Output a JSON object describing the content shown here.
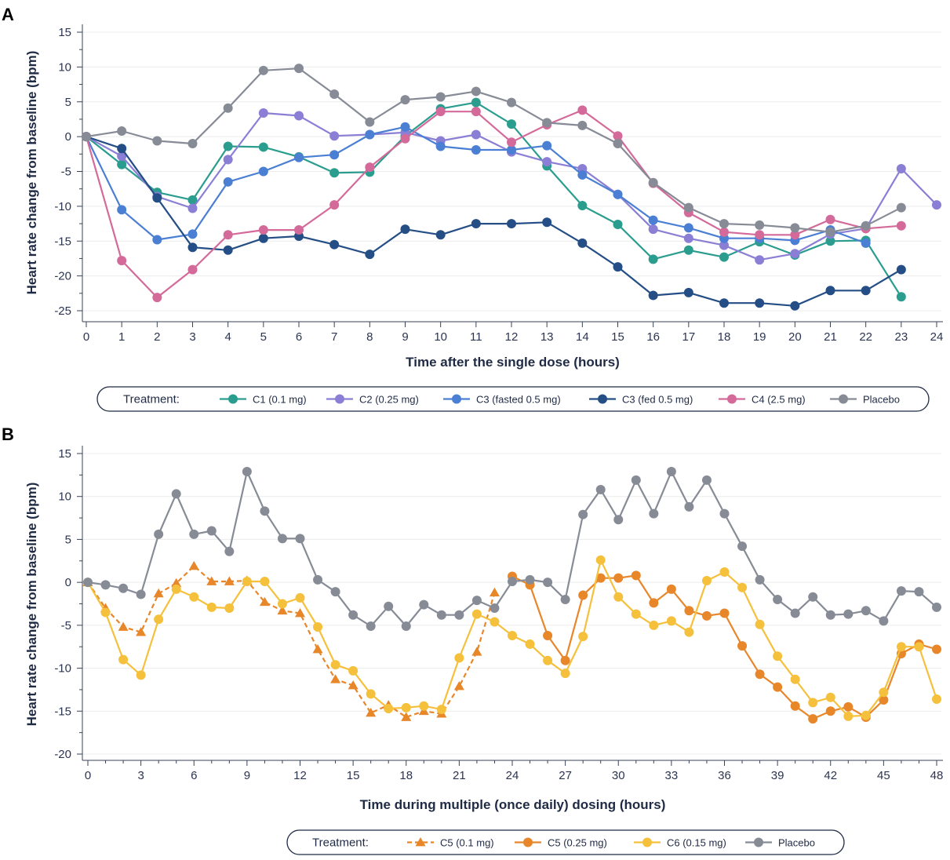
{
  "chart_data": [
    {
      "panel": "A",
      "type": "line",
      "xlabel": "Time after the single dose (hours)",
      "ylabel": "Heart rate change from baseline (bpm)",
      "xlim": [
        0,
        24
      ],
      "ylim": [
        -25,
        15
      ],
      "xticks": [
        0,
        1,
        2,
        3,
        4,
        5,
        6,
        7,
        8,
        9,
        10,
        11,
        12,
        13,
        14,
        15,
        16,
        17,
        18,
        19,
        20,
        21,
        22,
        23,
        24
      ],
      "yticks": [
        15,
        10,
        5,
        0,
        -5,
        -10,
        -15,
        -20,
        -25
      ],
      "legend_title": "Treatment:",
      "x": [
        0,
        1,
        2,
        3,
        4,
        5,
        6,
        7,
        8,
        9,
        10,
        11,
        12,
        13,
        14,
        15,
        16,
        17,
        18,
        19,
        20,
        21,
        22,
        23,
        24
      ],
      "series": [
        {
          "name": "C1 (0.1 mg)",
          "color": "#2a9d8f",
          "marker": "circle",
          "dash": false,
          "values": [
            0,
            -4,
            -8,
            -9.1,
            -1.4,
            -1.5,
            -2.9,
            -5.2,
            -5.1,
            0.1,
            4,
            4.9,
            1.8,
            -4.2,
            -9.9,
            -12.6,
            -17.6,
            -16.3,
            -17.3,
            -15.1,
            -17,
            -15,
            -14.9,
            -23,
            null
          ]
        },
        {
          "name": "C2 (0.25 mg)",
          "color": "#8a7fd4",
          "marker": "circle",
          "dash": false,
          "values": [
            0,
            -2.8,
            -8.6,
            -10.3,
            -3.3,
            3.4,
            3,
            0.1,
            0.3,
            0.6,
            -0.6,
            0.3,
            -2.2,
            -3.6,
            -4.6,
            -8.3,
            -13.3,
            -14.6,
            -15.6,
            -17.7,
            -16.8,
            -14,
            -13.2,
            -4.6,
            -9.8
          ]
        },
        {
          "name": "C3 (fasted 0.5 mg)",
          "color": "#4a7fd4",
          "marker": "circle",
          "dash": false,
          "values": [
            0,
            -10.5,
            -14.8,
            -14,
            -6.5,
            -5,
            -3,
            -2.6,
            0.3,
            1.4,
            -1.4,
            -1.9,
            -1.9,
            -1.3,
            -5.5,
            -8.3,
            -12,
            -13.1,
            -14.6,
            -14.6,
            -14.9,
            -13.4,
            -15.3,
            null,
            null
          ]
        },
        {
          "name": "C3 (fed 0.5 mg)",
          "color": "#244e85",
          "marker": "circle",
          "dash": false,
          "values": [
            0,
            -1.7,
            -8.8,
            -15.9,
            -16.3,
            -14.6,
            -14.3,
            -15.5,
            -16.9,
            -13.3,
            -14.1,
            -12.5,
            -12.5,
            -12.3,
            -15.3,
            -18.7,
            -22.8,
            -22.4,
            -23.9,
            -23.9,
            -24.3,
            -22.1,
            -22.1,
            -19.1,
            null
          ]
        },
        {
          "name": "C4 (2.5 mg)",
          "color": "#d46a9a",
          "marker": "circle",
          "dash": false,
          "values": [
            0,
            -17.8,
            -23.1,
            -19.1,
            -14.1,
            -13.4,
            -13.4,
            -9.8,
            -4.4,
            -0.3,
            3.6,
            3.6,
            -0.8,
            1.7,
            3.8,
            0.1,
            -6.7,
            -10.9,
            -13.7,
            -14.1,
            -14.1,
            -11.9,
            -13.2,
            -12.8,
            null
          ]
        },
        {
          "name": "Placebo",
          "color": "#868b96",
          "marker": "circle",
          "dash": false,
          "values": [
            0,
            0.8,
            -0.6,
            -1,
            4.1,
            9.5,
            9.8,
            6.1,
            2.1,
            5.3,
            5.7,
            6.5,
            4.9,
            2,
            1.6,
            -1,
            -6.6,
            -10.2,
            -12.5,
            -12.7,
            -13.1,
            -13.7,
            -12.8,
            -10.2,
            null
          ]
        }
      ]
    },
    {
      "panel": "B",
      "type": "line",
      "xlabel": "Time during multiple (once daily) dosing (hours)",
      "ylabel": "Heart rate change from baseline (bpm)",
      "xlim": [
        0,
        48
      ],
      "ylim": [
        -20,
        15
      ],
      "xticks": [
        0,
        3,
        6,
        9,
        12,
        15,
        18,
        21,
        24,
        27,
        30,
        33,
        36,
        39,
        42,
        45,
        48
      ],
      "yticks": [
        15,
        10,
        5,
        0,
        -5,
        -10,
        -15,
        -20
      ],
      "legend_title": "Treatment:",
      "series": [
        {
          "name": "C5 (0.1 mg)",
          "color": "#e8862a",
          "marker": "triangle",
          "dash": true,
          "x": [
            0,
            1,
            2,
            3,
            4,
            5,
            6,
            7,
            8,
            9,
            10,
            11,
            12,
            13,
            14,
            15,
            16,
            17,
            18,
            19,
            20,
            21,
            22,
            23
          ],
          "values": [
            0,
            -3,
            -5.2,
            -5.8,
            -1.3,
            -0.1,
            1.9,
            0.1,
            0.1,
            0.2,
            -2.3,
            -3.3,
            -3.6,
            -7.8,
            -11.3,
            -12,
            -15.2,
            -14.3,
            -15.7,
            -15,
            -15.3,
            -12.1,
            -8.1,
            -1.2
          ]
        },
        {
          "name": "C5 (0.25 mg)",
          "color": "#e8862a",
          "marker": "circle",
          "dash": false,
          "x": [
            24,
            25,
            26,
            27,
            28,
            29,
            30,
            31,
            32,
            33,
            34,
            35,
            36,
            37,
            38,
            39,
            40,
            41,
            42,
            43,
            44,
            45,
            46,
            47,
            48
          ],
          "values": [
            0.7,
            -0.3,
            -6.2,
            -9.1,
            -1.5,
            0.5,
            0.5,
            0.8,
            -2.4,
            -0.8,
            -3.3,
            -3.9,
            -3.6,
            -7.4,
            -10.7,
            -12.2,
            -14.4,
            -15.9,
            -15,
            -14.5,
            -15.7,
            -13.7,
            -8.3,
            -7.2,
            -7.8
          ]
        },
        {
          "name": "C6 (0.15 mg)",
          "color": "#f5c03b",
          "marker": "circle",
          "dash": false,
          "x": [
            0,
            1,
            2,
            3,
            4,
            5,
            6,
            7,
            8,
            9,
            10,
            11,
            12,
            13,
            14,
            15,
            16,
            17,
            18,
            19,
            20,
            21,
            22,
            23,
            24,
            25,
            26,
            27,
            28,
            29,
            30,
            31,
            32,
            33,
            34,
            35,
            36,
            37,
            38,
            39,
            40,
            41,
            42,
            43,
            44,
            45,
            46,
            47,
            48
          ],
          "values": [
            0,
            -3.5,
            -9,
            -10.8,
            -4.3,
            -0.8,
            -1.7,
            -2.9,
            -3,
            0.1,
            0.1,
            -2.5,
            -1.8,
            -5.2,
            -9.6,
            -10.3,
            -13,
            -14.7,
            -14.6,
            -14.4,
            -14.8,
            -8.8,
            -3.7,
            -4.6,
            -6.2,
            -7.2,
            -9.1,
            -10.6,
            -6.3,
            2.6,
            -1.7,
            -3.7,
            -5,
            -4.5,
            -5.8,
            0.2,
            1.2,
            -0.6,
            -4.9,
            -8.6,
            -11.3,
            -14,
            -13.4,
            -15.6,
            -15.5,
            -12.8,
            -7.5,
            -7.5,
            -13.6
          ]
        },
        {
          "name": "Placebo",
          "color": "#868b96",
          "marker": "circle",
          "dash": false,
          "x": [
            0,
            1,
            2,
            3,
            4,
            5,
            6,
            7,
            8,
            9,
            10,
            11,
            12,
            13,
            14,
            15,
            16,
            17,
            18,
            19,
            20,
            21,
            22,
            23,
            24,
            25,
            26,
            27,
            28,
            29,
            30,
            31,
            32,
            33,
            34,
            35,
            36,
            37,
            38,
            39,
            40,
            41,
            42,
            43,
            44,
            45,
            46,
            47,
            48
          ],
          "values": [
            0,
            -0.3,
            -0.7,
            -1.4,
            5.6,
            10.3,
            5.6,
            6,
            3.6,
            12.9,
            8.3,
            5.1,
            5.1,
            0.3,
            -1.1,
            -3.8,
            -5.1,
            -2.8,
            -5.1,
            -2.6,
            -3.8,
            -3.8,
            -2.1,
            -3,
            0.1,
            0.3,
            0,
            -2,
            7.9,
            10.8,
            7.3,
            11.9,
            8,
            12.9,
            8.8,
            11.9,
            8,
            4.2,
            0.3,
            -2,
            -3.6,
            -1.7,
            -3.8,
            -3.7,
            -3.3,
            -4.5,
            -1,
            -1.1,
            -2.9
          ]
        }
      ]
    }
  ]
}
